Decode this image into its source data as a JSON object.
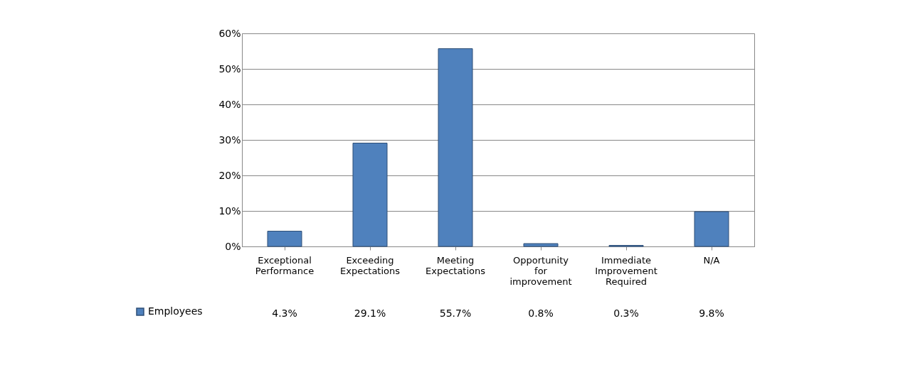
{
  "chart_data": {
    "type": "bar",
    "categories": [
      "Exceptional Performance",
      "Exceeding Expectations",
      "Meeting Expectations",
      "Opportunity for improvement",
      "Immediate Improvement Required",
      "N/A"
    ],
    "series": [
      {
        "name": "Employees",
        "color": "#4f81bd",
        "values": [
          4.3,
          29.1,
          55.7,
          0.8,
          0.3,
          9.8
        ]
      }
    ],
    "value_labels": [
      "4.3%",
      "29.1%",
      "55.7%",
      "0.8%",
      "0.3%",
      "9.8%"
    ],
    "ylim": [
      0,
      60
    ],
    "yticks": [
      {
        "value": 0,
        "label": "0%"
      },
      {
        "value": 10,
        "label": "10%"
      },
      {
        "value": 20,
        "label": "20%"
      },
      {
        "value": 30,
        "label": "30%"
      },
      {
        "value": 40,
        "label": "40%"
      },
      {
        "value": 50,
        "label": "50%"
      },
      {
        "value": 60,
        "label": "60%"
      }
    ],
    "grid": "y",
    "legend": "bottom left"
  }
}
